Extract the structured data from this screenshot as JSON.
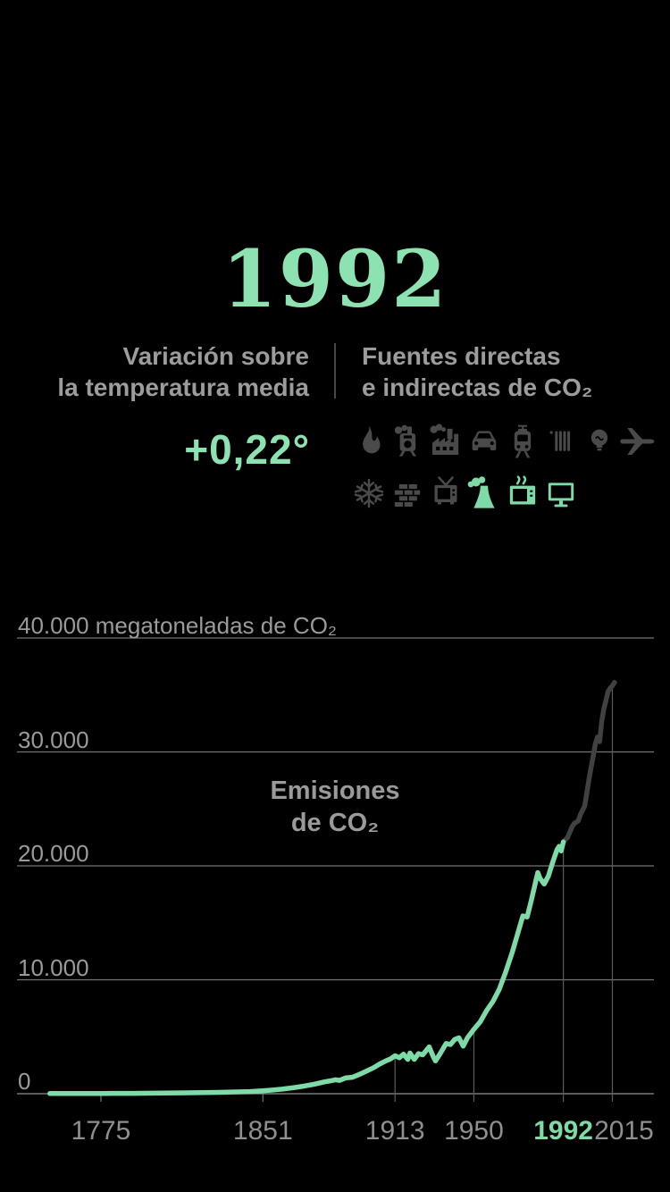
{
  "header": {
    "year": "1992",
    "left_caption_line1": "Variación sobre",
    "left_caption_line2": "la temperatura media",
    "right_caption_line1": "Fuentes directas",
    "right_caption_line2": "e indirectas de CO₂",
    "temperature_value": "+0,22°"
  },
  "sources": {
    "rows": [
      [
        {
          "name": "gas-flame",
          "active": false
        },
        {
          "name": "steam-locomotive",
          "active": false
        },
        {
          "name": "factory",
          "active": false
        },
        {
          "name": "car",
          "active": false
        },
        {
          "name": "tram",
          "active": false
        },
        {
          "name": "radiator",
          "active": false
        },
        {
          "name": "light-bulb",
          "active": false
        },
        {
          "name": "airplane",
          "active": false
        }
      ],
      [
        {
          "name": "snowflake",
          "active": false
        },
        {
          "name": "brick-wall",
          "active": false
        },
        {
          "name": "tv",
          "active": false
        },
        {
          "name": "cooling-tower",
          "active": true
        },
        {
          "name": "microwave",
          "active": true
        },
        {
          "name": "computer-monitor",
          "active": true
        }
      ]
    ]
  },
  "colors": {
    "title_green": "#8de2b1",
    "accent_green": "#7edaa6",
    "icon_gray": "#4a4a4a",
    "series_past": "#7edaa6",
    "series_future": "#414141",
    "gridline": "#747474",
    "baseline": "#8e8e8e",
    "dropline": "#5c5c5c",
    "label_gray": "#9a9a9a",
    "xlabel_gray": "#8f8f8f"
  },
  "chart_data": {
    "type": "line",
    "title": "Emisiones de CO₂",
    "center_label_line1": "Emisiones",
    "center_label_line2": "de CO₂",
    "y_unit": "megatoneladas de CO₂",
    "ylim": [
      0,
      40000
    ],
    "xlim": [
      1750,
      2016
    ],
    "grid": "horizontal",
    "yticks": [
      {
        "value": 40000,
        "label": "40.000 megatoneladas de CO₂"
      },
      {
        "value": 30000,
        "label": "30.000"
      },
      {
        "value": 20000,
        "label": "20.000"
      },
      {
        "value": 10000,
        "label": "10.000"
      },
      {
        "value": 0,
        "label": "0"
      }
    ],
    "xticks": [
      {
        "year": 1775,
        "label": "1775"
      },
      {
        "year": 1851,
        "label": "1851"
      },
      {
        "year": 1913,
        "label": "1913"
      },
      {
        "year": 1950,
        "label": "1950"
      },
      {
        "year": 1992,
        "label": "1992",
        "highlight": true
      },
      {
        "year": 2015,
        "label": "2015",
        "dx": 13
      }
    ],
    "axis_ticks": [
      1775,
      1851
    ],
    "droplines": [
      {
        "year": 1913,
        "value": 3320
      },
      {
        "year": 1950,
        "value": 5650
      },
      {
        "year": 1992,
        "value": 22100
      },
      {
        "year": 2015,
        "value": 35800
      }
    ],
    "series": [
      {
        "name": "Emisiones hasta 1992",
        "color_key": "series_past",
        "points": [
          [
            1751,
            15
          ],
          [
            1760,
            18
          ],
          [
            1775,
            25
          ],
          [
            1790,
            35
          ],
          [
            1800,
            45
          ],
          [
            1815,
            75
          ],
          [
            1830,
            120
          ],
          [
            1845,
            190
          ],
          [
            1850,
            240
          ],
          [
            1855,
            310
          ],
          [
            1860,
            400
          ],
          [
            1865,
            520
          ],
          [
            1870,
            660
          ],
          [
            1875,
            830
          ],
          [
            1880,
            1040
          ],
          [
            1883,
            1140
          ],
          [
            1885,
            1220
          ],
          [
            1887,
            1170
          ],
          [
            1890,
            1400
          ],
          [
            1893,
            1440
          ],
          [
            1896,
            1670
          ],
          [
            1900,
            2020
          ],
          [
            1903,
            2290
          ],
          [
            1906,
            2630
          ],
          [
            1909,
            2910
          ],
          [
            1911,
            3070
          ],
          [
            1913,
            3330
          ],
          [
            1915,
            3160
          ],
          [
            1917,
            3470
          ],
          [
            1919,
            3010
          ],
          [
            1920,
            3570
          ],
          [
            1922,
            3010
          ],
          [
            1924,
            3510
          ],
          [
            1926,
            3410
          ],
          [
            1929,
            4110
          ],
          [
            1931,
            3230
          ],
          [
            1932,
            2880
          ],
          [
            1934,
            3460
          ],
          [
            1937,
            4410
          ],
          [
            1939,
            4310
          ],
          [
            1941,
            4760
          ],
          [
            1943,
            4910
          ],
          [
            1945,
            4180
          ],
          [
            1947,
            4910
          ],
          [
            1950,
            5650
          ],
          [
            1953,
            6310
          ],
          [
            1956,
            7310
          ],
          [
            1959,
            8110
          ],
          [
            1962,
            9210
          ],
          [
            1965,
            10710
          ],
          [
            1968,
            12410
          ],
          [
            1971,
            14310
          ],
          [
            1973,
            15610
          ],
          [
            1975,
            15510
          ],
          [
            1977,
            17010
          ],
          [
            1979,
            18610
          ],
          [
            1980,
            19410
          ],
          [
            1981,
            18910
          ],
          [
            1983,
            18410
          ],
          [
            1985,
            19110
          ],
          [
            1987,
            20310
          ],
          [
            1989,
            21410
          ],
          [
            1990,
            21710
          ],
          [
            1991,
            21310
          ],
          [
            1992,
            22100
          ]
        ]
      },
      {
        "name": "Emisiones después de 1992",
        "color_key": "series_future",
        "points": [
          [
            1992,
            22100
          ],
          [
            1994,
            22500
          ],
          [
            1996,
            23400
          ],
          [
            1997,
            23700
          ],
          [
            1999,
            23950
          ],
          [
            2000,
            24500
          ],
          [
            2002,
            25250
          ],
          [
            2003,
            26400
          ],
          [
            2004,
            27600
          ],
          [
            2005,
            28600
          ],
          [
            2006,
            29600
          ],
          [
            2007,
            30700
          ],
          [
            2008,
            31300
          ],
          [
            2009,
            30900
          ],
          [
            2010,
            32700
          ],
          [
            2011,
            33800
          ],
          [
            2012,
            34500
          ],
          [
            2013,
            35300
          ],
          [
            2014,
            35600
          ],
          [
            2015,
            35800
          ],
          [
            2016,
            36100
          ]
        ]
      }
    ]
  }
}
